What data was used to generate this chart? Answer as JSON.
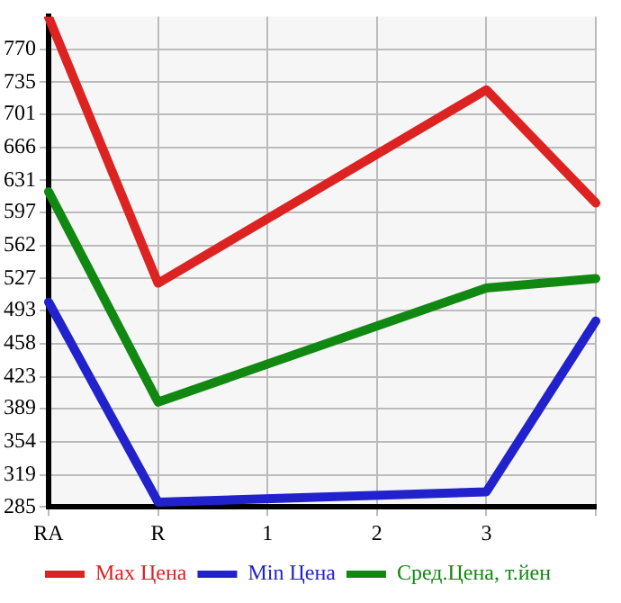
{
  "chart_data": {
    "type": "line",
    "categories": [
      "RA",
      "R",
      "1",
      "2",
      "3",
      null
    ],
    "series": [
      {
        "name": "Max Цена",
        "color": "#dd2222",
        "values": [
          804,
          522,
          null,
          null,
          727,
          607
        ]
      },
      {
        "name": "Min Цена",
        "color": "#2222cc",
        "values": [
          502,
          290,
          null,
          null,
          301,
          482
        ]
      },
      {
        "name": "Сред.Цена, т.йен",
        "color": "#118811",
        "values": [
          619,
          396,
          null,
          null,
          517,
          527
        ]
      }
    ],
    "ylim": [
      285,
      804.6
    ],
    "yticks": [
      285,
      319,
      354,
      389,
      423,
      458,
      493,
      527,
      562,
      597,
      631,
      666,
      701,
      735,
      770
    ],
    "grid": true,
    "legend": "bottom",
    "marker": "none",
    "line_style": "solid"
  }
}
